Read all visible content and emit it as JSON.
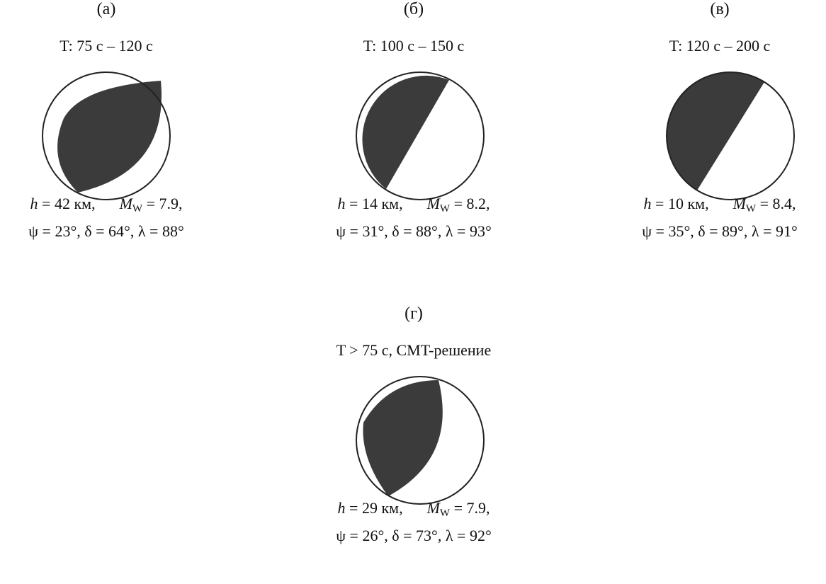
{
  "panels": [
    {
      "letter": "(а)",
      "period": "T: 75 с – 120 с",
      "h": "42",
      "mw": "7.9",
      "psi": "23",
      "delta": "64",
      "lambda": "88"
    },
    {
      "letter": "(б)",
      "period": "T: 100 с – 150 с",
      "h": "14",
      "mw": "8.2",
      "psi": "31",
      "delta": "88",
      "lambda": "93"
    },
    {
      "letter": "(в)",
      "period": "T: 120 с – 200 с",
      "h": "10",
      "mw": "8.4",
      "psi": "35",
      "delta": "89",
      "lambda": "91"
    },
    {
      "letter": "(г)",
      "period": "T > 75 с, CMT-решение",
      "h": "29",
      "mw": "7.9",
      "psi": "26",
      "delta": "73",
      "lambda": "92"
    }
  ],
  "labels": {
    "h_symbol": "h",
    "km_unit": "км",
    "mw_symbol": "M",
    "mw_sub": "W",
    "psi_symbol": "ψ",
    "delta_symbol": "δ",
    "lambda_symbol": "λ"
  },
  "colors": {
    "compression_fill": "#3b3b3b",
    "outline": "#222222",
    "background": "#ffffff"
  }
}
